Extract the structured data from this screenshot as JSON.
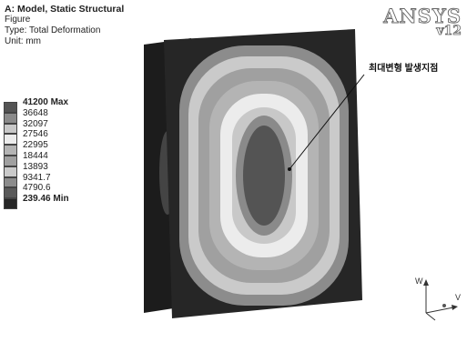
{
  "info": {
    "title": "A: Model, Static Structural",
    "line1": "Figure",
    "line2": "Type: Total Deformation",
    "line3": "Unit: mm"
  },
  "legend": {
    "items": [
      {
        "label": "41200 Max",
        "color": "#545454",
        "bold": true
      },
      {
        "label": "36648",
        "color": "#8a8a8a",
        "bold": false
      },
      {
        "label": "32097",
        "color": "#c8c8c8",
        "bold": false
      },
      {
        "label": "27546",
        "color": "#ececec",
        "bold": false
      },
      {
        "label": "22995",
        "color": "#b4b4b4",
        "bold": false
      },
      {
        "label": "18444",
        "color": "#a0a0a0",
        "bold": false
      },
      {
        "label": "13893",
        "color": "#cacaca",
        "bold": false
      },
      {
        "label": "9341.7",
        "color": "#8c8c8c",
        "bold": false
      },
      {
        "label": "4790.6",
        "color": "#5a5a5a",
        "bold": false
      },
      {
        "label": "239.46 Min",
        "color": "#262626",
        "bold": true
      }
    ]
  },
  "logo": {
    "brand": "ANSYS",
    "version": "v12"
  },
  "annotation": {
    "text": "최대변형 발생지점"
  },
  "triad": {
    "w": "W",
    "v": "V"
  }
}
